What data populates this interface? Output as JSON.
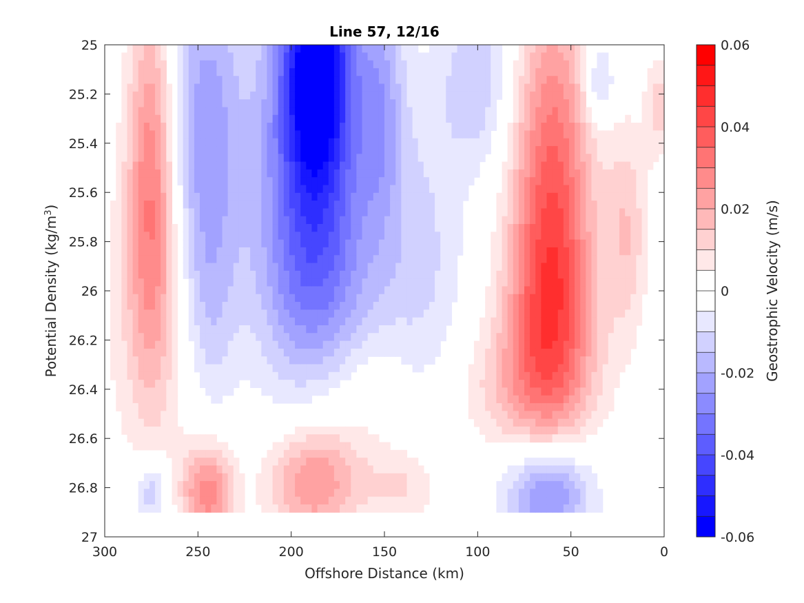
{
  "chart_data": {
    "type": "contour",
    "title": "Line 57, 12/16",
    "xlabel": "Offshore Distance (km)",
    "ylabel": "Potential Density (kg/m",
    "ylabel_sup": "3",
    "ylabel_close": ")",
    "xlim": [
      300,
      0
    ],
    "ylim": [
      25,
      27
    ],
    "y_reversed": true,
    "grid": false,
    "x_ticks": [
      300,
      250,
      200,
      150,
      100,
      50,
      0
    ],
    "x_tick_labels": [
      "300",
      "250",
      "200",
      "150",
      "100",
      "50",
      "0"
    ],
    "y_ticks": [
      25,
      25.2,
      25.4,
      25.6,
      25.8,
      26,
      26.2,
      26.4,
      26.6,
      26.8,
      27
    ],
    "y_tick_labels": [
      "25",
      "25.2",
      "25.4",
      "25.6",
      "25.8",
      "26",
      "26.2",
      "26.4",
      "26.6",
      "26.8",
      "27"
    ],
    "data_y_max": 26.9,
    "colorbar": {
      "label": "Geostrophic Velocity (m/s)",
      "range": [
        -0.06,
        0.06
      ],
      "levels": 24,
      "ticks": [
        0.06,
        0.04,
        0.02,
        0,
        -0.02,
        -0.04,
        -0.06
      ],
      "tick_labels": [
        "0.06",
        "0.04",
        "0.02",
        "0",
        "-0.02",
        "-0.04",
        "-0.06"
      ],
      "positive_color": "#ff0000",
      "negative_color": "#0000ff",
      "zero_color": "#ffffff"
    },
    "features": [
      {
        "x": 275,
        "y": 25.55,
        "sx": 9,
        "sy": 0.55,
        "v": 0.028
      },
      {
        "x": 272,
        "y": 26.1,
        "sx": 22,
        "sy": 0.45,
        "v": 0.009
      },
      {
        "x": 246,
        "y": 25.4,
        "sx": 14,
        "sy": 0.55,
        "v": -0.024
      },
      {
        "x": 244,
        "y": 26.1,
        "sx": 10,
        "sy": 0.3,
        "v": -0.008
      },
      {
        "x": 186,
        "y": 25.05,
        "sx": 13,
        "sy": 0.35,
        "v": -0.048
      },
      {
        "x": 190,
        "y": 25.55,
        "sx": 21,
        "sy": 0.55,
        "v": -0.034
      },
      {
        "x": 180,
        "y": 26.05,
        "sx": 24,
        "sy": 0.3,
        "v": -0.012
      },
      {
        "x": 152,
        "y": 25.25,
        "sx": 9,
        "sy": 0.35,
        "v": -0.018
      },
      {
        "x": 130,
        "y": 25.9,
        "sx": 17,
        "sy": 0.5,
        "v": -0.011
      },
      {
        "x": 100,
        "y": 25.15,
        "sx": 14,
        "sy": 0.25,
        "v": -0.014
      },
      {
        "x": 60,
        "y": 25.6,
        "sx": 15,
        "sy": 0.55,
        "v": 0.036
      },
      {
        "x": 62,
        "y": 26.15,
        "sx": 18,
        "sy": 0.3,
        "v": 0.022
      },
      {
        "x": 78,
        "y": 26.4,
        "sx": 25,
        "sy": 0.18,
        "v": 0.011
      },
      {
        "x": 35,
        "y": 25.15,
        "sx": 6,
        "sy": 0.12,
        "v": -0.016
      },
      {
        "x": 20,
        "y": 25.75,
        "sx": 8,
        "sy": 0.3,
        "v": 0.014
      },
      {
        "x": 3,
        "y": 25.25,
        "sx": 5,
        "sy": 0.15,
        "v": 0.012
      },
      {
        "x": 275,
        "y": 26.82,
        "sx": 7,
        "sy": 0.1,
        "v": -0.016
      },
      {
        "x": 245,
        "y": 26.82,
        "sx": 10,
        "sy": 0.14,
        "v": 0.028
      },
      {
        "x": 188,
        "y": 26.78,
        "sx": 17,
        "sy": 0.16,
        "v": 0.026
      },
      {
        "x": 168,
        "y": 26.4,
        "sx": 25,
        "sy": 0.25,
        "v": 0.009
      },
      {
        "x": 140,
        "y": 26.8,
        "sx": 14,
        "sy": 0.12,
        "v": 0.011
      },
      {
        "x": 62,
        "y": 26.82,
        "sx": 16,
        "sy": 0.14,
        "v": -0.03
      }
    ]
  }
}
